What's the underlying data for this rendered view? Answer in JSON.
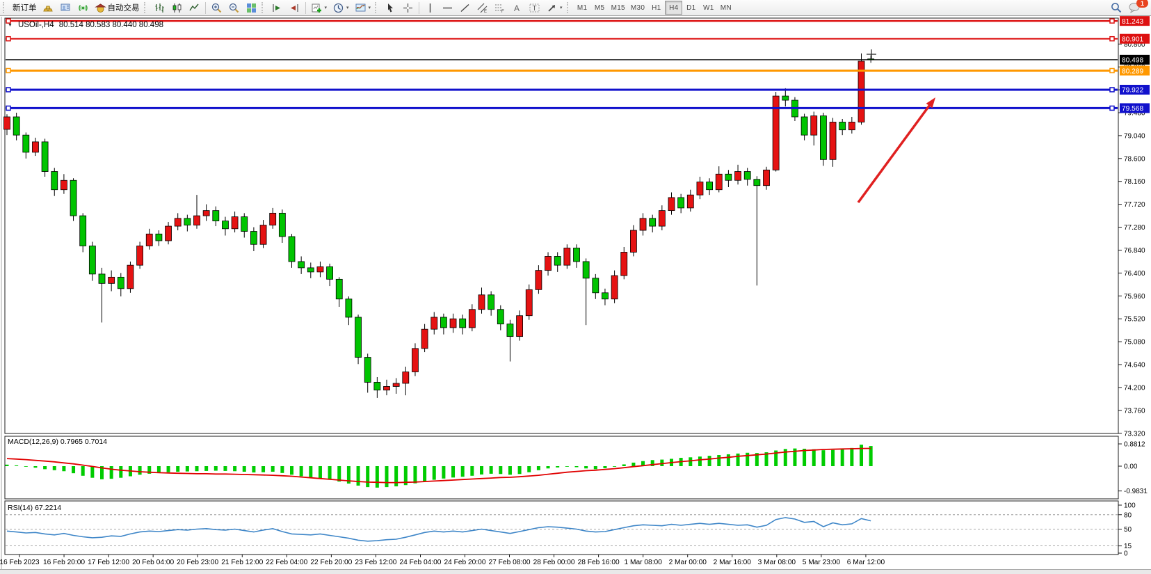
{
  "toolbar": {
    "new_order_label": "新订单",
    "autotrading_label": "自动交易",
    "timeframes": [
      "M1",
      "M5",
      "M15",
      "M30",
      "H1",
      "H4",
      "D1",
      "W1",
      "MN"
    ],
    "active_timeframe": "H4",
    "chat_badge": "1"
  },
  "icons": {
    "expander": "▼",
    "dropdown": "▾",
    "text_tool": "A",
    "label_tool": "T",
    "fibo_tool": "F",
    "channel_tool": "E"
  },
  "chart": {
    "title_symbol_period": "USOil-,H4",
    "title_ohlc": "80.514 80.583 80.440 80.498",
    "macd_label": "MACD(12,26,9) 0.7965 0.7014",
    "rsi_label": "RSI(14) 67.2214"
  },
  "chart_data": {
    "type": "candlestick",
    "symbol": "USOil-",
    "period": "H4",
    "open": 80.514,
    "high": 80.583,
    "low": 80.44,
    "close": 80.498,
    "price_axis_ticks": [
      {
        "v": 80.8,
        "label": "80.800"
      },
      {
        "v": 80.36,
        "label": "80.360"
      },
      {
        "v": 79.92,
        "label": "79.920"
      },
      {
        "v": 79.48,
        "label": "79.480"
      },
      {
        "v": 79.04,
        "label": "79.040"
      },
      {
        "v": 78.6,
        "label": "78.600"
      },
      {
        "v": 78.16,
        "label": "78.160"
      },
      {
        "v": 77.72,
        "label": "77.720"
      },
      {
        "v": 77.28,
        "label": "77.280"
      },
      {
        "v": 76.84,
        "label": "76.840"
      },
      {
        "v": 76.4,
        "label": "76.400"
      },
      {
        "v": 75.96,
        "label": "75.960"
      },
      {
        "v": 75.52,
        "label": "75.520"
      },
      {
        "v": 75.08,
        "label": "75.080"
      },
      {
        "v": 74.64,
        "label": "74.640"
      },
      {
        "v": 74.2,
        "label": "74.200"
      },
      {
        "v": 73.76,
        "label": "73.760"
      },
      {
        "v": 73.32,
        "label": "73.320"
      }
    ],
    "time_axis_labels": [
      "16 Feb 2023",
      "16 Feb 20:00",
      "17 Feb 12:00",
      "20 Feb 04:00",
      "20 Feb 23:00",
      "21 Feb 12:00",
      "22 Feb 04:00",
      "22 Feb 20:00",
      "23 Feb 12:00",
      "24 Feb 04:00",
      "24 Feb 20:00",
      "27 Feb 08:00",
      "28 Feb 00:00",
      "28 Feb 16:00",
      "1 Mar 08:00",
      "2 Mar 00:00",
      "2 Mar 16:00",
      "3 Mar 08:00",
      "5 Mar 23:00",
      "6 Mar 12:00"
    ],
    "candles": [
      [
        79.16,
        79.45,
        79.05,
        79.4
      ],
      [
        79.4,
        79.48,
        78.95,
        79.05
      ],
      [
        79.05,
        79.1,
        78.6,
        78.72
      ],
      [
        78.72,
        79.0,
        78.65,
        78.92
      ],
      [
        78.92,
        78.98,
        78.25,
        78.35
      ],
      [
        78.35,
        78.42,
        77.88,
        78.0
      ],
      [
        78.0,
        78.3,
        77.92,
        78.18
      ],
      [
        78.18,
        78.22,
        77.4,
        77.5
      ],
      [
        77.5,
        77.55,
        76.8,
        76.92
      ],
      [
        76.92,
        77.0,
        76.25,
        76.38
      ],
      [
        76.38,
        76.5,
        75.45,
        76.2
      ],
      [
        76.2,
        76.45,
        76.05,
        76.32
      ],
      [
        76.32,
        76.4,
        75.95,
        76.1
      ],
      [
        76.1,
        76.62,
        76.02,
        76.55
      ],
      [
        76.55,
        77.0,
        76.48,
        76.92
      ],
      [
        76.92,
        77.25,
        76.85,
        77.15
      ],
      [
        77.15,
        77.22,
        76.92,
        77.02
      ],
      [
        77.02,
        77.38,
        76.95,
        77.3
      ],
      [
        77.3,
        77.55,
        77.22,
        77.45
      ],
      [
        77.45,
        77.52,
        77.2,
        77.32
      ],
      [
        77.32,
        77.9,
        77.25,
        77.5
      ],
      [
        77.5,
        77.72,
        77.4,
        77.6
      ],
      [
        77.6,
        77.68,
        77.3,
        77.4
      ],
      [
        77.4,
        77.48,
        77.12,
        77.25
      ],
      [
        77.25,
        77.58,
        77.18,
        77.48
      ],
      [
        77.48,
        77.55,
        77.08,
        77.2
      ],
      [
        77.2,
        77.28,
        76.82,
        76.95
      ],
      [
        76.95,
        77.42,
        76.88,
        77.32
      ],
      [
        77.32,
        77.65,
        77.25,
        77.55
      ],
      [
        77.55,
        77.62,
        76.98,
        77.1
      ],
      [
        77.1,
        77.15,
        76.5,
        76.62
      ],
      [
        76.62,
        76.72,
        76.38,
        76.5
      ],
      [
        76.5,
        76.6,
        76.3,
        76.42
      ],
      [
        76.42,
        76.62,
        76.32,
        76.52
      ],
      [
        76.52,
        76.58,
        76.15,
        76.28
      ],
      [
        76.28,
        76.32,
        75.75,
        75.9
      ],
      [
        75.9,
        75.95,
        75.4,
        75.55
      ],
      [
        75.55,
        75.6,
        74.65,
        74.78
      ],
      [
        74.78,
        74.85,
        74.1,
        74.3
      ],
      [
        74.3,
        74.4,
        74.0,
        74.15
      ],
      [
        74.15,
        74.35,
        74.05,
        74.22
      ],
      [
        74.22,
        74.38,
        74.08,
        74.28
      ],
      [
        74.28,
        74.6,
        74.05,
        74.5
      ],
      [
        74.5,
        75.05,
        74.42,
        74.95
      ],
      [
        74.95,
        75.42,
        74.88,
        75.32
      ],
      [
        75.32,
        75.65,
        75.22,
        75.55
      ],
      [
        75.55,
        75.62,
        75.22,
        75.35
      ],
      [
        75.35,
        75.62,
        75.25,
        75.52
      ],
      [
        75.52,
        75.6,
        75.22,
        75.35
      ],
      [
        75.35,
        75.8,
        75.28,
        75.7
      ],
      [
        75.7,
        76.12,
        75.62,
        75.98
      ],
      [
        75.98,
        76.05,
        75.58,
        75.7
      ],
      [
        75.7,
        75.78,
        75.3,
        75.42
      ],
      [
        75.42,
        75.5,
        74.7,
        75.18
      ],
      [
        75.18,
        75.68,
        75.1,
        75.58
      ],
      [
        75.58,
        76.18,
        75.5,
        76.08
      ],
      [
        76.08,
        76.55,
        76.0,
        76.45
      ],
      [
        76.45,
        76.8,
        76.35,
        76.72
      ],
      [
        76.72,
        76.8,
        76.42,
        76.55
      ],
      [
        76.55,
        76.95,
        76.48,
        76.88
      ],
      [
        76.88,
        76.95,
        76.5,
        76.62
      ],
      [
        76.62,
        76.68,
        75.4,
        76.3
      ],
      [
        76.3,
        76.38,
        75.9,
        76.02
      ],
      [
        76.02,
        76.1,
        75.78,
        75.9
      ],
      [
        75.9,
        76.45,
        75.82,
        76.35
      ],
      [
        76.35,
        76.9,
        76.28,
        76.8
      ],
      [
        76.8,
        77.32,
        76.72,
        77.22
      ],
      [
        77.22,
        77.55,
        77.12,
        77.45
      ],
      [
        77.45,
        77.52,
        77.18,
        77.3
      ],
      [
        77.3,
        77.7,
        77.22,
        77.6
      ],
      [
        77.6,
        77.95,
        77.52,
        77.85
      ],
      [
        77.85,
        77.92,
        77.55,
        77.65
      ],
      [
        77.65,
        78.0,
        77.58,
        77.9
      ],
      [
        77.9,
        78.25,
        77.82,
        78.15
      ],
      [
        78.15,
        78.22,
        77.9,
        78.0
      ],
      [
        78.0,
        78.45,
        77.95,
        78.3
      ],
      [
        78.3,
        78.38,
        78.05,
        78.18
      ],
      [
        78.18,
        78.48,
        78.1,
        78.35
      ],
      [
        78.35,
        78.42,
        78.08,
        78.2
      ],
      [
        78.2,
        78.26,
        76.16,
        78.08
      ],
      [
        78.08,
        78.44,
        78.0,
        78.38
      ],
      [
        78.38,
        79.88,
        78.35,
        79.8
      ],
      [
        79.8,
        79.95,
        79.6,
        79.72
      ],
      [
        79.72,
        79.78,
        79.32,
        79.4
      ],
      [
        79.4,
        79.46,
        78.95,
        79.05
      ],
      [
        79.05,
        79.5,
        78.85,
        79.42
      ],
      [
        79.42,
        79.48,
        78.46,
        78.58
      ],
      [
        78.58,
        79.38,
        78.44,
        79.3
      ],
      [
        79.3,
        79.36,
        79.05,
        79.15
      ],
      [
        79.15,
        79.4,
        79.08,
        79.3
      ],
      [
        79.3,
        80.62,
        79.25,
        80.47
      ],
      [
        80.514,
        80.583,
        80.44,
        80.498
      ]
    ],
    "horizontal_lines": [
      {
        "price": 81.243,
        "label": "81.243",
        "color": "#dd1111",
        "width": 2.5
      },
      {
        "price": 80.901,
        "label": "80.901",
        "color": "#dd1111",
        "width": 2
      },
      {
        "price": 80.498,
        "label": "80.498",
        "color": "#000000",
        "width": 1.2
      },
      {
        "price": 80.289,
        "label": "80.289",
        "color": "#ff9800",
        "width": 3
      },
      {
        "price": 79.922,
        "label": "79.922",
        "color": "#1111cc",
        "width": 3
      },
      {
        "price": 79.568,
        "label": "79.568",
        "color": "#1111cc",
        "width": 3
      }
    ],
    "macd": {
      "label_params": "12,26,9",
      "current_value": 0.7965,
      "current_signal": 0.7014,
      "axis_ticks": [
        {
          "v": 0.8812,
          "label": "0.8812"
        },
        {
          "v": 0,
          "label": "0.00"
        },
        {
          "v": -0.9831,
          "label": "-0.9831"
        }
      ],
      "histogram": [
        0.06,
        0.03,
        -0.02,
        -0.06,
        -0.12,
        -0.16,
        -0.2,
        -0.28,
        -0.38,
        -0.46,
        -0.52,
        -0.5,
        -0.46,
        -0.4,
        -0.34,
        -0.3,
        -0.27,
        -0.24,
        -0.22,
        -0.21,
        -0.2,
        -0.19,
        -0.18,
        -0.19,
        -0.2,
        -0.22,
        -0.25,
        -0.24,
        -0.22,
        -0.27,
        -0.34,
        -0.4,
        -0.45,
        -0.48,
        -0.54,
        -0.61,
        -0.69,
        -0.77,
        -0.83,
        -0.85,
        -0.83,
        -0.8,
        -0.75,
        -0.68,
        -0.61,
        -0.54,
        -0.49,
        -0.45,
        -0.42,
        -0.38,
        -0.33,
        -0.3,
        -0.31,
        -0.34,
        -0.31,
        -0.24,
        -0.16,
        -0.09,
        -0.05,
        -0.02,
        -0.04,
        -0.09,
        -0.12,
        -0.08,
        -0.01,
        0.07,
        0.14,
        0.2,
        0.24,
        0.26,
        0.29,
        0.33,
        0.35,
        0.38,
        0.41,
        0.44,
        0.47,
        0.5,
        0.53,
        0.52,
        0.55,
        0.62,
        0.68,
        0.7,
        0.69,
        0.67,
        0.63,
        0.64,
        0.66,
        0.72,
        0.85,
        0.7965
      ],
      "signal": [
        0.3,
        0.28,
        0.26,
        0.23,
        0.2,
        0.17,
        0.13,
        0.09,
        0.04,
        -0.01,
        -0.07,
        -0.12,
        -0.16,
        -0.19,
        -0.22,
        -0.24,
        -0.26,
        -0.27,
        -0.28,
        -0.29,
        -0.3,
        -0.3,
        -0.31,
        -0.31,
        -0.32,
        -0.33,
        -0.34,
        -0.35,
        -0.36,
        -0.38,
        -0.4,
        -0.43,
        -0.46,
        -0.49,
        -0.52,
        -0.55,
        -0.58,
        -0.61,
        -0.63,
        -0.64,
        -0.65,
        -0.65,
        -0.64,
        -0.63,
        -0.61,
        -0.59,
        -0.57,
        -0.55,
        -0.53,
        -0.51,
        -0.49,
        -0.47,
        -0.45,
        -0.44,
        -0.42,
        -0.39,
        -0.36,
        -0.32,
        -0.28,
        -0.24,
        -0.21,
        -0.18,
        -0.16,
        -0.13,
        -0.1,
        -0.06,
        -0.02,
        0.02,
        0.06,
        0.1,
        0.14,
        0.18,
        0.21,
        0.25,
        0.28,
        0.32,
        0.35,
        0.39,
        0.42,
        0.45,
        0.48,
        0.52,
        0.56,
        0.59,
        0.62,
        0.64,
        0.66,
        0.67,
        0.68,
        0.69,
        0.7,
        0.7014
      ]
    },
    "rsi": {
      "period": 14,
      "current_value": 67.2214,
      "axis_ticks": [
        {
          "v": 100,
          "label": "100",
          "dashed": false
        },
        {
          "v": 80,
          "label": "80",
          "dashed": true
        },
        {
          "v": 50,
          "label": "50",
          "dashed": true
        },
        {
          "v": 15,
          "label": "15",
          "dashed": true
        },
        {
          "v": 0,
          "label": "0",
          "dashed": false
        }
      ],
      "values": [
        46,
        44,
        42,
        43,
        40,
        38,
        41,
        37,
        34,
        32,
        33,
        36,
        35,
        40,
        44,
        46,
        45,
        47,
        49,
        48,
        50,
        51,
        49,
        48,
        50,
        47,
        44,
        48,
        51,
        45,
        40,
        39,
        38,
        40,
        37,
        34,
        31,
        27,
        25,
        26,
        28,
        29,
        33,
        38,
        43,
        46,
        44,
        46,
        44,
        47,
        50,
        47,
        44,
        41,
        45,
        49,
        53,
        55,
        54,
        52,
        50,
        46,
        44,
        45,
        49,
        53,
        57,
        59,
        58,
        57,
        60,
        58,
        60,
        62,
        60,
        62,
        60,
        58,
        59,
        54,
        58,
        70,
        74,
        71,
        64,
        66,
        55,
        63,
        59,
        61,
        72,
        67.22
      ]
    },
    "colors": {
      "up": "#e51212",
      "down": "#00c400",
      "wick": "#000000",
      "macd_hist": "#00cc00",
      "macd_signal": "#e00000",
      "rsi_line": "#3e86c8",
      "annotation_arrow": "#e02020"
    },
    "annotations": [
      {
        "type": "arrow-up-right",
        "color": "#e02020"
      }
    ]
  }
}
